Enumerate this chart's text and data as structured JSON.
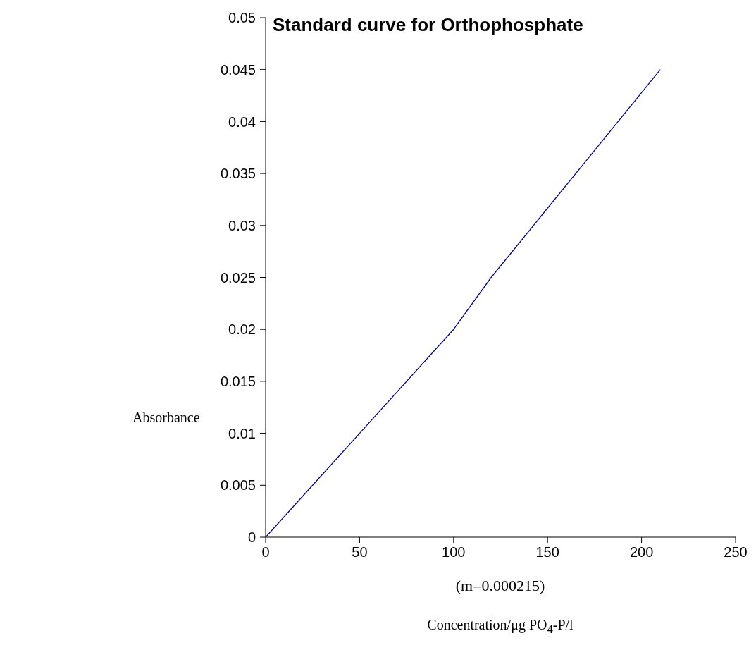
{
  "chart_data": {
    "type": "line",
    "title": "Standard curve for Orthophosphate",
    "xlabel": "Concentration/μg PO$_{4}$-P/l",
    "ylabel": "Absorbance",
    "annotations": [
      "(m=0.000215)"
    ],
    "x": [
      0,
      25,
      50,
      100,
      120,
      165,
      210
    ],
    "series": [
      {
        "color": "#000080",
        "values": [
          0,
          0.005,
          0.01,
          0.02,
          0.025,
          0.035,
          0.045
        ]
      }
    ],
    "xlim": [
      0,
      250
    ],
    "xticks": [
      0,
      50,
      100,
      150,
      200,
      250
    ],
    "ylim": [
      0,
      0.05
    ],
    "yticks": [
      0,
      0.005,
      0.01,
      0.015,
      0.02,
      0.025,
      0.03,
      0.035,
      0.04,
      0.045,
      0.05
    ],
    "grid": false,
    "legend": false
  }
}
